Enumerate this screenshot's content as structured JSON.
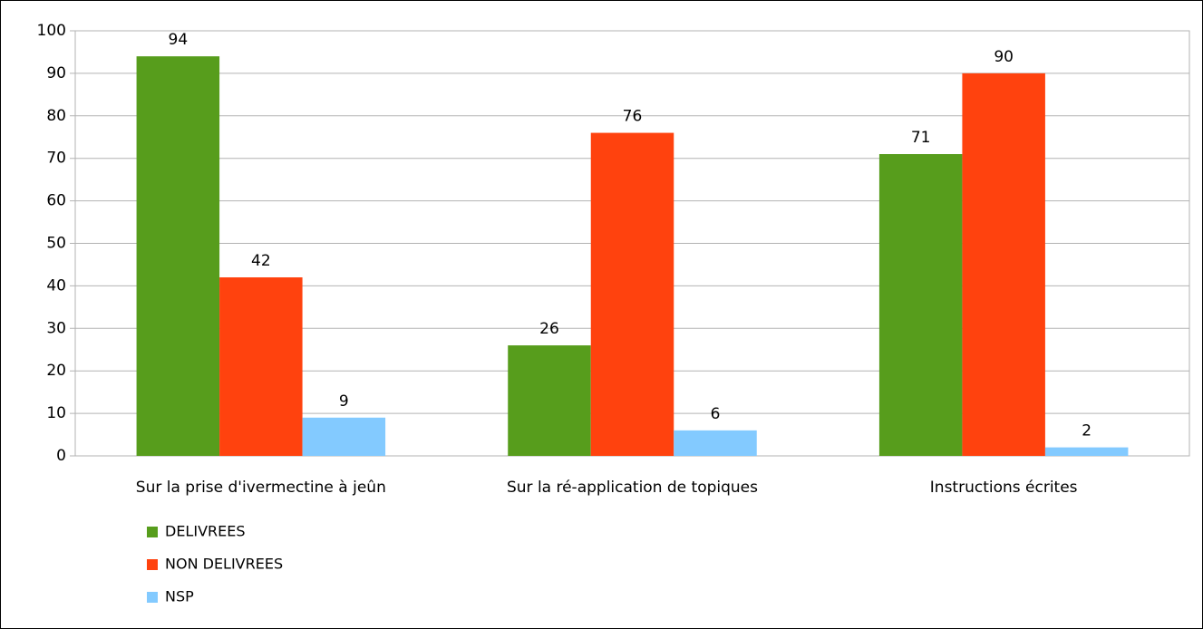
{
  "chart_data": {
    "type": "bar",
    "categories": [
      "Sur la prise d'ivermectine à jeûn",
      "Sur la ré-application de topiques",
      "Instructions écrites"
    ],
    "series": [
      {
        "name": "DELIVREES",
        "color": "#579d1c",
        "values": [
          94,
          26,
          71
        ]
      },
      {
        "name": "NON DELIVREES",
        "color": "#ff420e",
        "values": [
          42,
          76,
          90
        ]
      },
      {
        "name": "NSP",
        "color": "#83caff",
        "values": [
          9,
          6,
          2
        ]
      }
    ],
    "ylim": [
      0,
      100
    ],
    "yticks": [
      0,
      10,
      20,
      30,
      40,
      50,
      60,
      70,
      80,
      90,
      100
    ],
    "grid": true,
    "legend": "bottom-left"
  }
}
